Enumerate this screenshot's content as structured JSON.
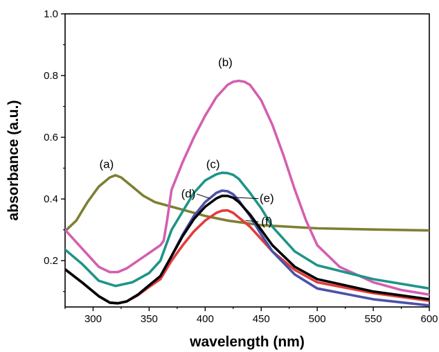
{
  "chart_data": {
    "type": "line",
    "title": "",
    "xlabel": "wavelength (nm)",
    "ylabel": "absorbance (a.u.)",
    "xlim": [
      275,
      600
    ],
    "ylim": [
      0.05,
      1.0
    ],
    "x_ticks": [
      300,
      350,
      400,
      450,
      500,
      550,
      600
    ],
    "y_ticks": [
      0.2,
      0.4,
      0.6,
      0.8,
      1.0
    ],
    "x_tick_labels": [
      "300",
      "350",
      "400",
      "450",
      "500",
      "550",
      "600"
    ],
    "y_tick_labels": [
      "0.2",
      "0.4",
      "0.6",
      "0.8",
      "1.0"
    ],
    "grid": false,
    "legend": "none",
    "series": [
      {
        "name": "(a)",
        "color": "#7f7f33",
        "x": [
          275,
          285,
          295,
          305,
          315,
          320,
          325,
          335,
          345,
          355,
          365,
          380,
          400,
          420,
          450,
          500,
          550,
          600
        ],
        "y": [
          0.296,
          0.33,
          0.39,
          0.44,
          0.47,
          0.477,
          0.47,
          0.44,
          0.41,
          0.39,
          0.38,
          0.365,
          0.345,
          0.33,
          0.315,
          0.305,
          0.301,
          0.298
        ]
      },
      {
        "name": "(b)",
        "color": "#d45fb0",
        "x": [
          275,
          290,
          305,
          315,
          322,
          330,
          340,
          350,
          360,
          363,
          366,
          370,
          380,
          390,
          400,
          410,
          420,
          425,
          430,
          435,
          440,
          450,
          460,
          470,
          480,
          490,
          500,
          520,
          550,
          575,
          600
        ],
        "y": [
          0.3,
          0.24,
          0.18,
          0.163,
          0.163,
          0.175,
          0.2,
          0.225,
          0.25,
          0.265,
          0.33,
          0.43,
          0.52,
          0.6,
          0.67,
          0.73,
          0.77,
          0.78,
          0.783,
          0.78,
          0.77,
          0.72,
          0.64,
          0.54,
          0.43,
          0.33,
          0.25,
          0.18,
          0.13,
          0.105,
          0.09
        ]
      },
      {
        "name": "(c)",
        "color": "#1e9488",
        "x": [
          275,
          290,
          305,
          320,
          335,
          350,
          360,
          370,
          380,
          390,
          400,
          410,
          415,
          420,
          425,
          430,
          440,
          450,
          460,
          480,
          500,
          550,
          600
        ],
        "y": [
          0.236,
          0.19,
          0.135,
          0.118,
          0.13,
          0.16,
          0.2,
          0.3,
          0.36,
          0.42,
          0.46,
          0.48,
          0.485,
          0.484,
          0.478,
          0.465,
          0.42,
          0.37,
          0.31,
          0.23,
          0.185,
          0.14,
          0.11
        ]
      },
      {
        "name": "(d)",
        "color": "#000000",
        "x": [
          275,
          290,
          305,
          315,
          322,
          330,
          340,
          350,
          360,
          370,
          380,
          390,
          400,
          410,
          415,
          420,
          425,
          430,
          440,
          450,
          460,
          480,
          500,
          550,
          600
        ],
        "y": [
          0.172,
          0.13,
          0.085,
          0.064,
          0.062,
          0.068,
          0.09,
          0.12,
          0.15,
          0.215,
          0.28,
          0.335,
          0.375,
          0.402,
          0.41,
          0.41,
          0.404,
          0.39,
          0.35,
          0.3,
          0.25,
          0.18,
          0.14,
          0.1,
          0.075
        ]
      },
      {
        "name": "(e)",
        "color": "#4a52a8",
        "x": [
          275,
          290,
          305,
          315,
          322,
          330,
          340,
          350,
          360,
          370,
          380,
          390,
          400,
          410,
          415,
          420,
          425,
          430,
          440,
          450,
          460,
          480,
          500,
          550,
          600
        ],
        "y": [
          0.172,
          0.13,
          0.085,
          0.064,
          0.062,
          0.068,
          0.09,
          0.12,
          0.15,
          0.215,
          0.285,
          0.345,
          0.39,
          0.42,
          0.427,
          0.425,
          0.415,
          0.395,
          0.345,
          0.285,
          0.23,
          0.155,
          0.11,
          0.075,
          0.055
        ]
      },
      {
        "name": "(f)",
        "color": "#e23b3b",
        "x": [
          275,
          290,
          305,
          315,
          322,
          330,
          340,
          350,
          360,
          370,
          380,
          390,
          400,
          410,
          415,
          420,
          425,
          430,
          440,
          450,
          460,
          480,
          500,
          550,
          600
        ],
        "y": [
          0.172,
          0.13,
          0.085,
          0.064,
          0.062,
          0.068,
          0.088,
          0.115,
          0.14,
          0.2,
          0.25,
          0.295,
          0.33,
          0.355,
          0.362,
          0.363,
          0.355,
          0.34,
          0.31,
          0.27,
          0.23,
          0.17,
          0.13,
          0.095,
          0.07
        ]
      }
    ],
    "annotations": [
      {
        "text": "(a)",
        "x": 312,
        "y": 0.5,
        "leader": false
      },
      {
        "text": "(b)",
        "x": 418,
        "y": 0.83,
        "leader": false
      },
      {
        "text": "(c)",
        "x": 407,
        "y": 0.5,
        "leader": false
      },
      {
        "text": "(d)",
        "x": 385,
        "y": 0.405,
        "leader": true,
        "leader_to_x": 404,
        "leader_to_y": 0.402
      },
      {
        "text": "(e)",
        "x": 455,
        "y": 0.39,
        "leader": true,
        "leader_to_x": 425,
        "leader_to_y": 0.405
      },
      {
        "text": "(f)",
        "x": 455,
        "y": 0.315,
        "leader": true,
        "leader_to_x": 436,
        "leader_to_y": 0.33
      }
    ]
  }
}
